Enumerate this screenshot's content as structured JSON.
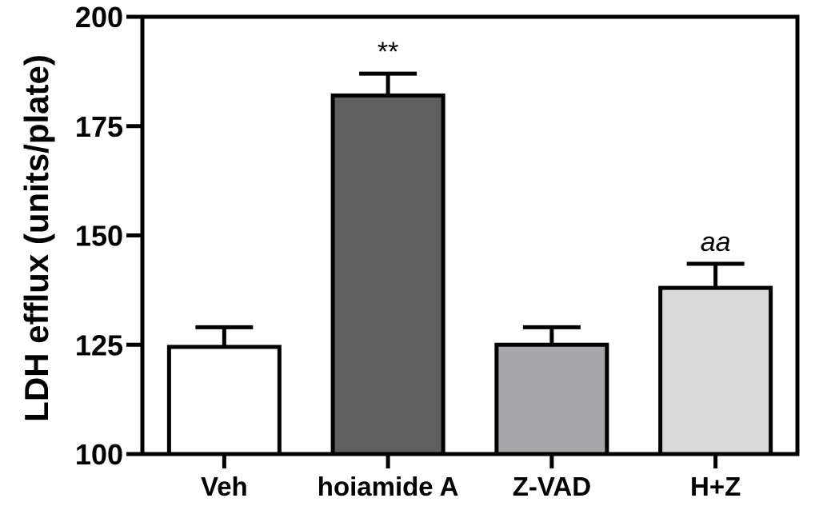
{
  "chart_data": {
    "type": "bar",
    "title": "",
    "xlabel": "",
    "ylabel": "LDH efflux (units/plate)",
    "ylim": [
      100,
      200
    ],
    "yticks": [
      100,
      125,
      150,
      175,
      200
    ],
    "ytick_labels": [
      "100",
      "125",
      "150",
      "175",
      "200"
    ],
    "categories": [
      "Veh",
      "hoiamide A",
      "Z-VAD",
      "H+Z"
    ],
    "values": [
      124.5,
      182,
      125,
      138
    ],
    "errors": [
      4.5,
      5,
      4,
      5.5
    ],
    "annotations": [
      "",
      "**",
      "",
      "aa"
    ],
    "annotation_styles": [
      "normal",
      "normal",
      "normal",
      "italic"
    ],
    "colors": [
      "#ffffff",
      "#5f5f5f",
      "#a7a7aa",
      "#d9d9d9"
    ],
    "grid": false,
    "legend": "none"
  }
}
